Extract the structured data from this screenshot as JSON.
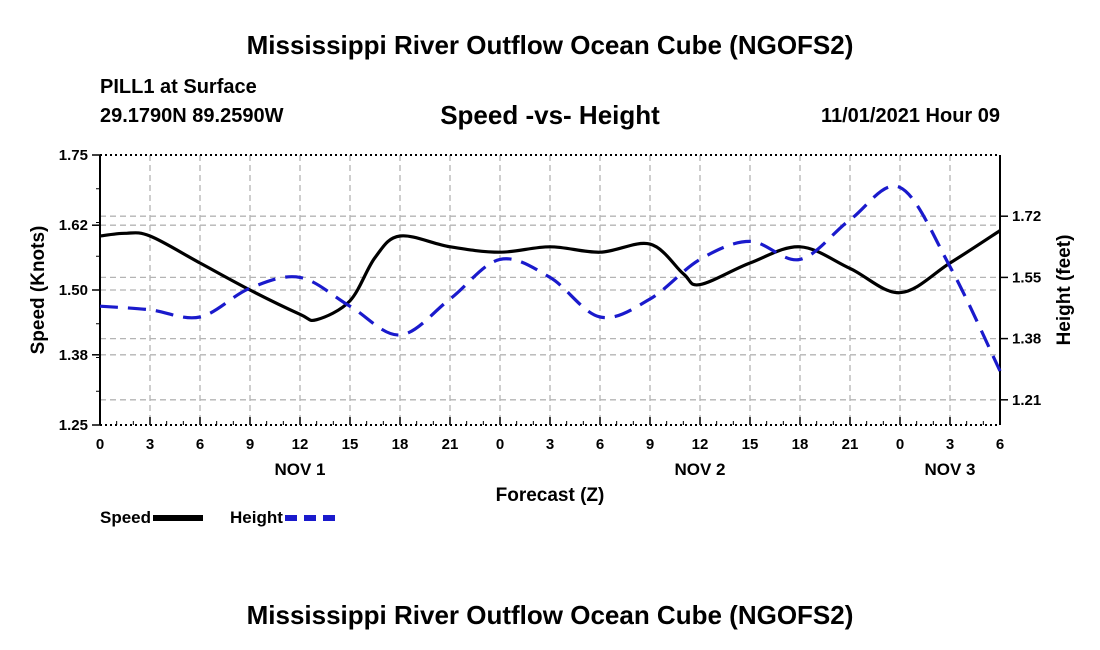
{
  "header": {
    "title": "Mississippi River Outflow Ocean Cube (NGOFS2)",
    "station": "PILL1 at Surface",
    "coords": "29.1790N  89.2590W",
    "subtitle": "Speed -vs- Height",
    "datetime": "11/01/2021 Hour 09"
  },
  "footer": {
    "title": "Mississippi River Outflow Ocean Cube (NGOFS2)"
  },
  "legend": {
    "speed_label": "Speed",
    "height_label": "Height"
  },
  "colors": {
    "speed": "#000000",
    "height": "#1a1acc",
    "grid": "#b4b4b4"
  },
  "chart_data": {
    "type": "line",
    "xlabel": "Forecast (Z)",
    "ylabel_left": "Speed (Knots)",
    "ylabel_right": "Height (feet)",
    "x_range_hours": [
      0,
      54
    ],
    "x_ticks": [
      "0",
      "3",
      "6",
      "9",
      "12",
      "15",
      "18",
      "21",
      "0",
      "3",
      "6",
      "9",
      "12",
      "15",
      "18",
      "21",
      "0",
      "3",
      "6"
    ],
    "day_labels": [
      {
        "label": "NOV 1",
        "hour": 12
      },
      {
        "label": "NOV 2",
        "hour": 36
      },
      {
        "label": "NOV 3",
        "hour": 51
      }
    ],
    "ylim_left": [
      1.25,
      1.75
    ],
    "yticks_left": [
      "1.25",
      "1.38",
      "1.50",
      "1.62",
      "1.75"
    ],
    "ylim_right": [
      1.14,
      1.89
    ],
    "yticks_right": [
      "1.21",
      "1.38",
      "1.55",
      "1.72"
    ],
    "grid": true,
    "series": [
      {
        "name": "Speed",
        "axis": "left",
        "style": "solid",
        "x": [
          0,
          1.5,
          3,
          6,
          9,
          12,
          13,
          15,
          16.5,
          18,
          21,
          24,
          27,
          30,
          33,
          35,
          36,
          39,
          42,
          45,
          48,
          51,
          54
        ],
        "values": [
          1.6,
          1.605,
          1.6,
          1.55,
          1.5,
          1.455,
          1.445,
          1.48,
          1.56,
          1.6,
          1.58,
          1.57,
          1.58,
          1.57,
          1.585,
          1.53,
          1.51,
          1.55,
          1.58,
          1.54,
          1.495,
          1.55,
          1.61
        ]
      },
      {
        "name": "Height",
        "axis": "right",
        "style": "dashed",
        "x": [
          0,
          3,
          6,
          9,
          12,
          15,
          18,
          21,
          24,
          27,
          30,
          33,
          36,
          39,
          42,
          45,
          48,
          51,
          54
        ],
        "values": [
          1.47,
          1.46,
          1.44,
          1.52,
          1.55,
          1.47,
          1.39,
          1.49,
          1.6,
          1.55,
          1.44,
          1.49,
          1.6,
          1.65,
          1.6,
          1.71,
          1.8,
          1.58,
          1.29
        ]
      }
    ]
  }
}
